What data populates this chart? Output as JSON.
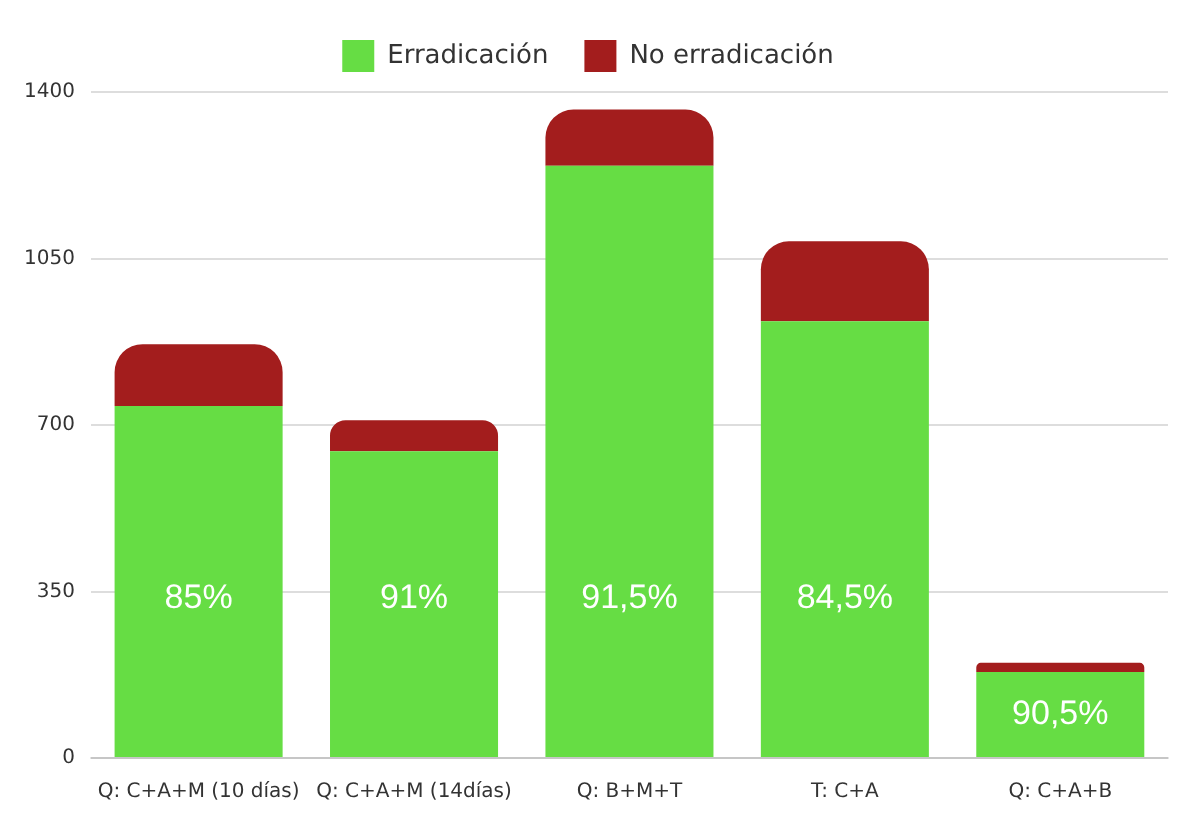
{
  "chart_data": {
    "type": "bar",
    "stacked": true,
    "categories": [
      "Q: C+A+M (10 días)",
      "Q: C+A+M (14días)",
      "Q: B+M+T",
      "T: C+A",
      "Q: C+A+B"
    ],
    "series": [
      {
        "name": "Erradicación",
        "color": "#66dd44",
        "values": [
          740,
          645,
          1245,
          918,
          181
        ]
      },
      {
        "name": "No erradicación",
        "color": "#a31d1d",
        "values": [
          130,
          65,
          118,
          168,
          19
        ]
      }
    ],
    "annotations": [
      "85%",
      "91%",
      "91,5%",
      "84,5%",
      "90,5%"
    ],
    "ylim": [
      0,
      1400
    ],
    "yticks": [
      0,
      350,
      700,
      1050,
      1400
    ],
    "grid": "y",
    "legend": "top"
  }
}
